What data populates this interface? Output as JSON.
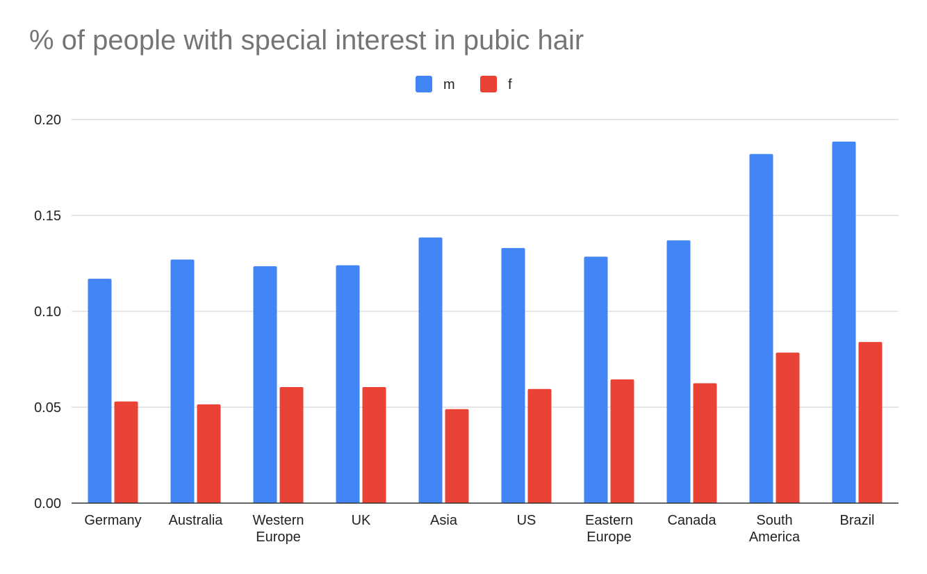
{
  "chart_data": {
    "type": "bar",
    "title": "% of people with special interest in pubic hair",
    "categories": [
      [
        "Germany"
      ],
      [
        "Australia"
      ],
      [
        "Western",
        "Europe"
      ],
      [
        "UK"
      ],
      [
        "Asia"
      ],
      [
        "US"
      ],
      [
        "Eastern",
        "Europe"
      ],
      [
        "Canada"
      ],
      [
        "South",
        "America"
      ],
      [
        "Brazil"
      ]
    ],
    "series": [
      {
        "name": "m",
        "color": "#4285f4",
        "values": [
          0.117,
          0.127,
          0.1235,
          0.124,
          0.1385,
          0.133,
          0.1285,
          0.137,
          0.182,
          0.1885
        ]
      },
      {
        "name": "f",
        "color": "#ea4335",
        "values": [
          0.053,
          0.0515,
          0.0605,
          0.0605,
          0.049,
          0.0595,
          0.0645,
          0.0625,
          0.0785,
          0.084
        ]
      }
    ],
    "yticks": [
      "0.00",
      "0.05",
      "0.10",
      "0.15",
      "0.20"
    ],
    "ylim": [
      0,
      0.2
    ],
    "xlabel": "",
    "ylabel": "",
    "grid": true,
    "legend_position": "top-center"
  }
}
